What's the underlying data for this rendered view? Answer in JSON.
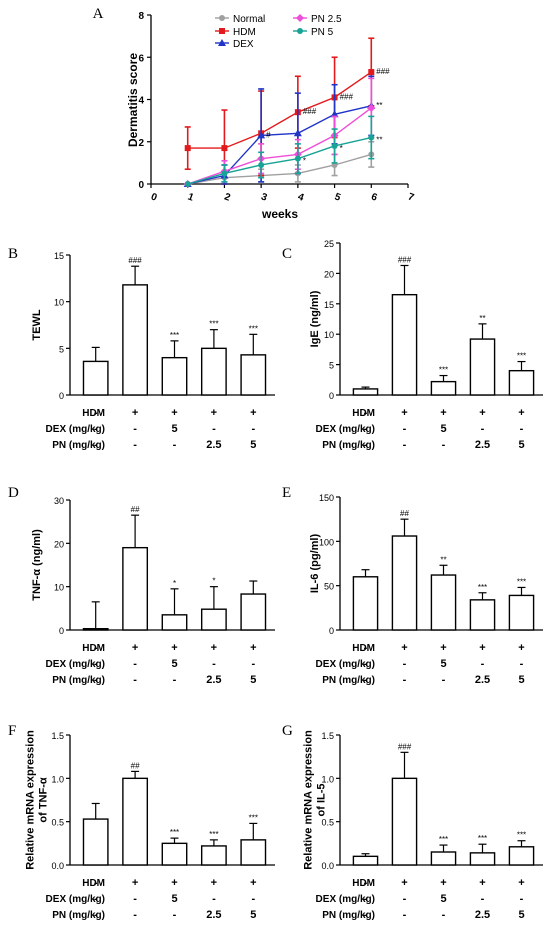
{
  "chart_data": [
    {
      "panel": "A",
      "type": "line",
      "xlabel": "weeks",
      "ylabel": "Dermatitis score",
      "xlim": [
        0,
        7
      ],
      "ylim": [
        0,
        8
      ],
      "xticks": [
        "0",
        "1",
        "2",
        "3",
        "4",
        "5",
        "6",
        "7"
      ],
      "yticks": [
        "0",
        "2",
        "4",
        "6",
        "8"
      ],
      "legend_position": "top",
      "x": [
        1,
        2,
        3,
        4,
        5,
        6
      ],
      "series": [
        {
          "name": "Normal",
          "color": "#a0a0a0",
          "marker": "circle",
          "values": [
            0,
            0.3,
            0.4,
            0.5,
            0.9,
            1.4
          ],
          "err": [
            0,
            0.2,
            0.3,
            0.4,
            0.5,
            0.6
          ],
          "annotations": [
            "",
            "",
            "",
            "",
            "",
            ""
          ]
        },
        {
          "name": "HDM",
          "color": "#e31a1c",
          "marker": "square",
          "values": [
            1.7,
            1.7,
            2.4,
            3.4,
            4.1,
            5.3
          ],
          "err": [
            1.0,
            1.8,
            2.0,
            1.7,
            1.9,
            1.6
          ],
          "annotations": [
            "",
            "",
            "",
            "###",
            "###",
            "###"
          ]
        },
        {
          "name": "DEX",
          "color": "#2034c8",
          "marker": "triangle",
          "values": [
            0,
            0.4,
            2.3,
            2.4,
            3.3,
            3.7
          ],
          "err": [
            0,
            0.5,
            2.2,
            1.9,
            1.4,
            1.4
          ],
          "annotations": [
            "",
            "",
            "#",
            "",
            "",
            "**"
          ]
        },
        {
          "name": "PN 2.5",
          "color": "#ee4fd8",
          "marker": "diamond",
          "values": [
            0,
            0.6,
            1.2,
            1.4,
            2.3,
            3.6
          ],
          "err": [
            0,
            0.5,
            0.7,
            0.7,
            0.9,
            1.4
          ],
          "annotations": [
            "",
            "",
            "",
            "",
            "",
            ""
          ]
        },
        {
          "name": "PN 5",
          "color": "#17a396",
          "marker": "circle",
          "values": [
            0,
            0.5,
            0.9,
            1.2,
            1.8,
            2.2
          ],
          "err": [
            0,
            0.4,
            0.6,
            0.7,
            0.8,
            1.0
          ],
          "annotations": [
            "",
            "",
            "",
            "*",
            "*",
            "**"
          ]
        }
      ]
    },
    {
      "panel": "B",
      "type": "bar",
      "ylabel": "TEWL",
      "ylim": [
        0,
        15
      ],
      "yticks": [
        "0",
        "5",
        "10",
        "15"
      ],
      "values": [
        3.6,
        11.8,
        4.0,
        5.0,
        4.3
      ],
      "err": [
        1.5,
        2.0,
        1.8,
        2.0,
        2.2
      ],
      "annotations": [
        "",
        "###",
        "***",
        "***",
        "***"
      ]
    },
    {
      "panel": "C",
      "type": "bar",
      "ylabel": "IgE (ng/ml)",
      "ylim": [
        0,
        25
      ],
      "yticks": [
        "0",
        "5",
        "10",
        "15",
        "20",
        "25"
      ],
      "values": [
        1.0,
        16.5,
        2.2,
        9.2,
        4.0
      ],
      "err": [
        0.3,
        4.8,
        1.0,
        2.5,
        1.5
      ],
      "annotations": [
        "",
        "###",
        "***",
        "**",
        "***"
      ]
    },
    {
      "panel": "D",
      "type": "bar",
      "ylabel": "TNF-α (ng/ml)",
      "ylim": [
        0,
        30
      ],
      "yticks": [
        "0",
        "10",
        "20",
        "30"
      ],
      "values": [
        0.3,
        19.0,
        3.5,
        4.8,
        8.3
      ],
      "err": [
        6.2,
        7.5,
        6.0,
        5.2,
        3.0
      ],
      "annotations": [
        "",
        "##",
        "*",
        "*",
        ""
      ]
    },
    {
      "panel": "E",
      "type": "bar",
      "ylabel": "IL-6 (pg/ml)",
      "ylim": [
        0,
        150
      ],
      "yticks": [
        "0",
        "50",
        "100",
        "150"
      ],
      "values": [
        60,
        106,
        62,
        34,
        39
      ],
      "err": [
        8,
        19,
        11,
        8,
        9
      ],
      "annotations": [
        "",
        "##",
        "**",
        "***",
        "***"
      ]
    },
    {
      "panel": "F",
      "type": "bar",
      "ylabel": "Relative mRNA expression\nof TNF-α",
      "ylim": [
        0,
        1.5
      ],
      "yticks": [
        "0.0",
        "0.5",
        "1.0",
        "1.5"
      ],
      "values": [
        0.53,
        1.0,
        0.25,
        0.22,
        0.29
      ],
      "err": [
        0.18,
        0.08,
        0.06,
        0.07,
        0.19
      ],
      "annotations": [
        "",
        "##",
        "***",
        "***",
        "***"
      ]
    },
    {
      "panel": "G",
      "type": "bar",
      "ylabel": "Relative mRNA expression\nof IL-5",
      "ylim": [
        0,
        1.5
      ],
      "yticks": [
        "0.0",
        "0.5",
        "1.0",
        "1.5"
      ],
      "values": [
        0.1,
        1.0,
        0.15,
        0.14,
        0.21
      ],
      "err": [
        0.03,
        0.3,
        0.08,
        0.1,
        0.07
      ],
      "annotations": [
        "",
        "###",
        "***",
        "***",
        "***"
      ]
    }
  ],
  "treatment_table": {
    "rows": [
      {
        "label": "HDM",
        "cells": [
          "-",
          "+",
          "+",
          "+",
          "+"
        ]
      },
      {
        "label": "DEX (mg/kg)",
        "cells": [
          "-",
          "-",
          "5",
          "-",
          "-"
        ]
      },
      {
        "label": "PN (mg/kg)",
        "cells": [
          "-",
          "-",
          "-",
          "2.5",
          "5"
        ]
      }
    ]
  }
}
